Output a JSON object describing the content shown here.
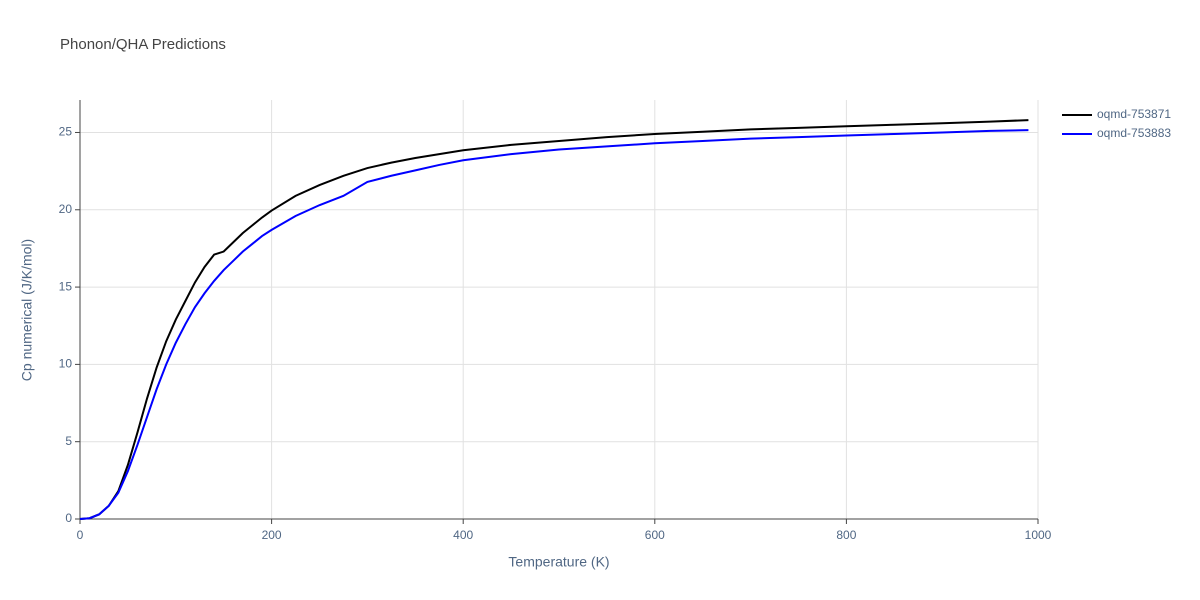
{
  "chart_data": {
    "type": "line",
    "title": "Phonon/QHA Predictions",
    "x_label": "Temperature (K)",
    "y_label": "Cp numerical (J/K/mol)",
    "x": [
      0,
      10,
      20,
      30,
      40,
      50,
      60,
      70,
      80,
      90,
      100,
      110,
      120,
      130,
      140,
      150,
      160,
      170,
      180,
      190,
      200,
      225,
      250,
      275,
      300,
      325,
      350,
      375,
      400,
      450,
      500,
      550,
      600,
      650,
      700,
      750,
      800,
      850,
      900,
      950,
      990
    ],
    "series": [
      {
        "name": "oqmd-753871",
        "color": "#000000",
        "values": [
          0,
          0.05,
          0.3,
          0.85,
          1.8,
          3.5,
          5.6,
          7.8,
          9.8,
          11.5,
          12.9,
          14.1,
          15.3,
          16.3,
          17.1,
          17.3,
          17.9,
          18.5,
          19.0,
          19.5,
          19.95,
          20.9,
          21.6,
          22.2,
          22.7,
          23.05,
          23.35,
          23.6,
          23.85,
          24.2,
          24.45,
          24.7,
          24.9,
          25.05,
          25.2,
          25.3,
          25.4,
          25.5,
          25.6,
          25.7,
          25.8
        ]
      },
      {
        "name": "oqmd-753883",
        "color": "#0000ff",
        "values": [
          0,
          0.05,
          0.3,
          0.85,
          1.7,
          3.1,
          4.8,
          6.6,
          8.4,
          10.0,
          11.4,
          12.6,
          13.7,
          14.6,
          15.4,
          16.1,
          16.7,
          17.3,
          17.8,
          18.3,
          18.7,
          19.6,
          20.3,
          20.9,
          21.8,
          22.2,
          22.55,
          22.9,
          23.2,
          23.6,
          23.9,
          24.1,
          24.3,
          24.45,
          24.6,
          24.7,
          24.8,
          24.9,
          25.0,
          25.1,
          25.15
        ]
      }
    ],
    "xlim": [
      0,
      1000
    ],
    "xticks": [
      0,
      200,
      400,
      600,
      800,
      1000
    ],
    "ylim": [
      0,
      27.1
    ],
    "yticks": [
      0,
      5,
      10,
      15,
      20,
      25
    ],
    "grid": true,
    "legend": "outside-top-right"
  }
}
